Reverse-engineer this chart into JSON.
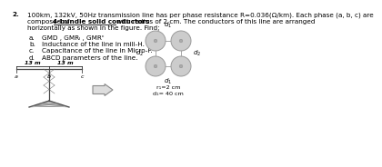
{
  "bg_color": "#ffffff",
  "text_color": "#000000",
  "circle_fill": "#cccccc",
  "circle_edge": "#999999",
  "arrow_fill": "#dddddd",
  "arrow_edge": "#888888",
  "phase_labels": [
    "a",
    "b",
    "c"
  ],
  "line1": "100km, 132kV, 50Hz transmission line has per phase resistance R=0.036(Ω/km). Each phase (a, b, c) are",
  "line2a": "composed of ",
  "line2b": "4-bundle solid conductors",
  "line2c": " with radius of 2 cm. The conductors of this line are arranged",
  "line3": "horizontally as shown in the figure. Find;",
  "items_label": [
    "a.",
    "b.",
    "c.",
    "d."
  ],
  "items_text": [
    "GMD , GMRₗ , GMRᶜ",
    "Inductance of the line in mili-H.",
    "Capacitance of the line in Micro-F.",
    "ABCD parameters of the line."
  ],
  "dim_text": "13 m  13 m",
  "r_text": "r₁=2 cm",
  "d_text": "d₁= 40 cm",
  "fs": 5.2,
  "fs_small": 4.6,
  "fs_label": 5.0
}
